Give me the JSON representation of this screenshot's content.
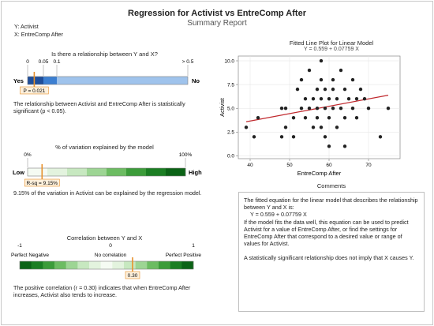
{
  "header": {
    "title": "Regression for Activist vs EntreComp After",
    "subtitle": "Summary Report",
    "y_var": "Y: Activist",
    "x_var": "X: EntreComp After"
  },
  "relationship": {
    "title": "Is there a relationship between Y and X?",
    "ticks": [
      "0",
      "0.05",
      "0.1",
      "> 0.5"
    ],
    "yes": "Yes",
    "no": "No",
    "p_label": "P = 0.021",
    "p_value": 0.021,
    "text": "The relationship between Activist and EntreComp After is statistically significant (p < 0.05).",
    "colors": {
      "significant": "#1f4e9a",
      "borderline": "#3c7fd1",
      "not_significant": "#9fc3ec"
    }
  },
  "variation": {
    "title": "% of variation explained by the model",
    "tick_low": "0%",
    "tick_high": "100%",
    "low": "Low",
    "high": "High",
    "r2_label": "R-sq = 9.15%",
    "r2_value": 0.0915,
    "text": "9.15% of the variation in Activist can be explained by the regression model.",
    "gradient": [
      "#f5fbf3",
      "#e3f3de",
      "#c7e8c0",
      "#9dd594",
      "#6cbc62",
      "#3c9c3a",
      "#1b7e23",
      "#0b6316"
    ]
  },
  "correlation": {
    "title": "Correlation between Y and X",
    "ticks": [
      "-1",
      "0",
      "1"
    ],
    "left_label": "Perfect Negative",
    "mid_label": "No correlation",
    "right_label": "Perfect Positive",
    "r_label": "0.30",
    "r_value": 0.3,
    "text": "The positive correlation (r = 0.30) indicates that when EntreComp After increases, Activist also tends to increase.",
    "gradient": [
      "#0b6316",
      "#1b7e23",
      "#3c9c3a",
      "#6cbc62",
      "#9dd594",
      "#c7e8c0",
      "#e3f3de",
      "#f5fbf3",
      "#e3f3de",
      "#c7e8c0",
      "#9dd594",
      "#6cbc62",
      "#3c9c3a",
      "#1b7e23",
      "#0b6316"
    ]
  },
  "fitted_plot": {
    "title": "Fitted Line Plot for Linear Model",
    "equation": "Y = 0.559 + 0.07759 X",
    "xlabel": "EntreComp After",
    "ylabel": "Activist",
    "line_color": "#c0282d",
    "point_color": "#222222"
  },
  "comments": {
    "title": "Comments",
    "p1": "The fitted equation for the linear model that describes the relationship between Y and X is:",
    "equation": "Y = 0.559 + 0.07759 X",
    "p2": "If the model fits the data well, this equation can be used to predict Activist for a value of EntreComp After, or find the settings for EntreComp After that correspond to a desired value or range of values for Activist.",
    "p3": "A statistically significant relationship does not imply that X causes Y."
  },
  "chart_data": {
    "type": "scatter",
    "title": "Fitted Line Plot for Linear Model",
    "subtitle": "Y = 0.559 + 0.07759 X",
    "xlabel": "EntreComp After",
    "ylabel": "Activist",
    "xlim": [
      37,
      78
    ],
    "ylim": [
      -0.3,
      10.5
    ],
    "xticks": [
      40,
      50,
      60,
      70,
      80
    ],
    "yticks": [
      0.0,
      2.5,
      5.0,
      7.5,
      10.0
    ],
    "ytick_labels": [
      "0.0",
      "2.5",
      "5.0",
      "7.5",
      "10.0"
    ],
    "grid": true,
    "fit_line": {
      "intercept": 0.559,
      "slope": 0.07759,
      "x_range": [
        39,
        75
      ]
    },
    "points": [
      [
        39,
        3
      ],
      [
        41,
        2
      ],
      [
        42,
        4
      ],
      [
        48,
        2
      ],
      [
        48,
        5
      ],
      [
        49,
        5
      ],
      [
        49,
        3
      ],
      [
        51,
        4
      ],
      [
        51,
        2
      ],
      [
        52,
        7
      ],
      [
        53,
        5
      ],
      [
        53,
        8
      ],
      [
        54,
        6
      ],
      [
        54,
        4
      ],
      [
        55,
        5
      ],
      [
        55,
        9
      ],
      [
        56,
        6
      ],
      [
        56,
        3
      ],
      [
        57,
        7
      ],
      [
        57,
        4
      ],
      [
        57,
        5
      ],
      [
        58,
        8
      ],
      [
        58,
        6
      ],
      [
        58,
        10
      ],
      [
        58,
        3
      ],
      [
        59,
        5
      ],
      [
        59,
        7
      ],
      [
        59,
        2
      ],
      [
        60,
        6
      ],
      [
        60,
        4
      ],
      [
        60,
        1
      ],
      [
        61,
        5
      ],
      [
        61,
        8
      ],
      [
        61,
        7
      ],
      [
        62,
        6
      ],
      [
        62,
        3
      ],
      [
        63,
        5
      ],
      [
        63,
        9
      ],
      [
        64,
        7
      ],
      [
        64,
        4
      ],
      [
        64,
        1
      ],
      [
        65,
        6
      ],
      [
        66,
        5
      ],
      [
        66,
        8
      ],
      [
        67,
        6
      ],
      [
        67,
        4
      ],
      [
        68,
        7
      ],
      [
        69,
        6
      ],
      [
        70,
        5
      ],
      [
        73,
        2
      ],
      [
        75,
        5
      ]
    ]
  }
}
